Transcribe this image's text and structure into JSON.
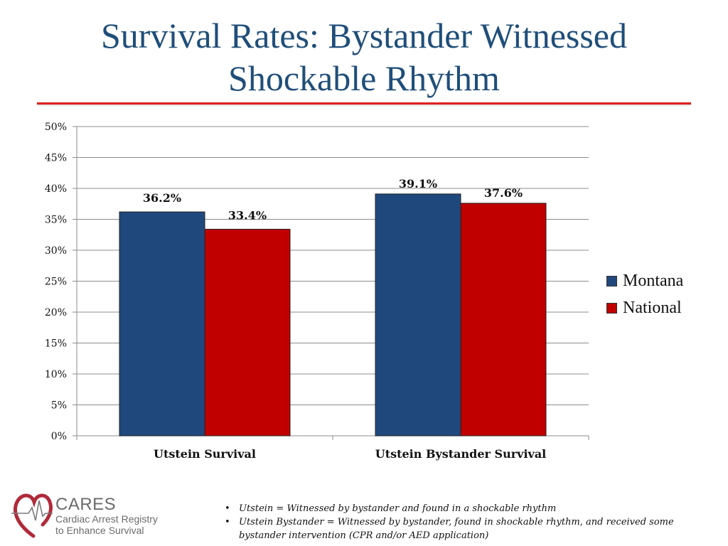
{
  "slide": {
    "title_line1": "Survival Rates: Bystander Witnessed",
    "title_line2": "Shockable Rhythm",
    "accent_color": "#e02020",
    "title_color": "#1f4e79"
  },
  "chart_data": {
    "type": "bar",
    "categories": [
      "Utstein Survival",
      "Utstein Bystander Survival"
    ],
    "series": [
      {
        "name": "Montana",
        "values": [
          36.2,
          39.1
        ],
        "labels": [
          "36.2%",
          "39.1%"
        ],
        "color": "#1f497d"
      },
      {
        "name": "National",
        "values": [
          33.4,
          37.6
        ],
        "labels": [
          "33.4%",
          "37.6%"
        ],
        "color": "#c00000"
      }
    ],
    "ylim": [
      0,
      50
    ],
    "yticks": [
      0,
      5,
      10,
      15,
      20,
      25,
      30,
      35,
      40,
      45,
      50
    ],
    "ytick_labels": [
      "0%",
      "5%",
      "10%",
      "15%",
      "20%",
      "25%",
      "30%",
      "35%",
      "40%",
      "45%",
      "50%"
    ],
    "grid": true,
    "legend_position": "right"
  },
  "logo": {
    "name": "CARES",
    "line1": "Cardiac Arrest Registry",
    "line2": "to Enhance Survival",
    "icon": "heart-ekg-icon"
  },
  "notes": [
    "Utstein = Witnessed by bystander and found in a shockable rhythm",
    "Utstein Bystander = Witnessed by bystander, found in shockable rhythm, and received some bystander intervention (CPR and/or AED application)"
  ]
}
